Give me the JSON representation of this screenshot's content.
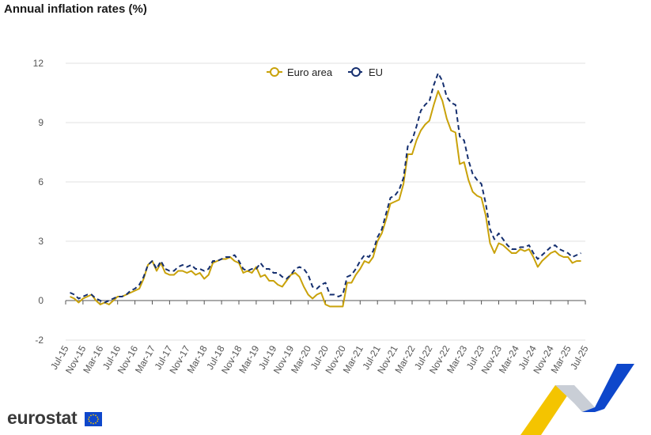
{
  "title": "Annual inflation rates (%)",
  "logo": "eurostat",
  "colors": {
    "euro_area": "#c9a20a",
    "eu": "#152f6f",
    "grid": "#e0e0e0",
    "axis": "#555555",
    "deco_yellow": "#f4c400",
    "deco_blue": "#0e47cb",
    "deco_grey": "#b9bec7"
  },
  "chart_data": {
    "type": "line",
    "title": "Annual inflation rates (%)",
    "xlabel": "",
    "ylabel": "",
    "ylim": [
      -2,
      12
    ],
    "yticks": [
      -2,
      0,
      3,
      6,
      9,
      12
    ],
    "grid": true,
    "legend_position": "top-center",
    "x_tick_labels": [
      "Jul-15",
      "Nov-15",
      "Mar-16",
      "Jul-16",
      "Nov-16",
      "Mar-17",
      "Jul-17",
      "Nov-17",
      "Mar-18",
      "Jul-18",
      "Nov-18",
      "Mar-19",
      "Jul-19",
      "Nov-19",
      "Mar-20",
      "Jul-20",
      "Nov-20",
      "Mar-21",
      "Jul-21",
      "Nov-21",
      "Mar-22",
      "Jul-22",
      "Nov-22",
      "Mar-23",
      "Jul-23",
      "Nov-23",
      "Mar-24",
      "Jul-24",
      "Nov-24",
      "Mar-25",
      "Jul-25"
    ],
    "x_start": "Jul-15",
    "x_end": "Jul-25",
    "series": [
      {
        "name": "Euro area",
        "style": "solid",
        "values": [
          0.2,
          0.1,
          -0.1,
          0.1,
          0.2,
          0.3,
          0.0,
          -0.2,
          -0.1,
          -0.2,
          0.0,
          0.2,
          0.2,
          0.3,
          0.4,
          0.5,
          0.6,
          1.1,
          1.8,
          2.0,
          1.5,
          1.9,
          1.4,
          1.3,
          1.3,
          1.5,
          1.5,
          1.4,
          1.5,
          1.3,
          1.4,
          1.1,
          1.3,
          1.9,
          2.0,
          2.1,
          2.1,
          2.2,
          2.0,
          1.9,
          1.4,
          1.5,
          1.4,
          1.7,
          1.2,
          1.3,
          1.0,
          1.0,
          0.8,
          0.7,
          1.0,
          1.3,
          1.4,
          1.2,
          0.7,
          0.3,
          0.1,
          0.3,
          0.4,
          -0.2,
          -0.3,
          -0.3,
          -0.3,
          -0.3,
          0.9,
          0.9,
          1.3,
          1.6,
          2.0,
          1.9,
          2.2,
          3.0,
          3.4,
          4.1,
          4.9,
          5.0,
          5.1,
          5.9,
          7.4,
          7.4,
          8.1,
          8.6,
          8.9,
          9.1,
          9.9,
          10.6,
          10.1,
          9.2,
          8.6,
          8.5,
          6.9,
          7.0,
          6.1,
          5.5,
          5.3,
          5.2,
          4.3,
          2.9,
          2.4,
          2.9,
          2.8,
          2.6,
          2.4,
          2.4,
          2.6,
          2.5,
          2.6,
          2.2,
          1.7,
          2.0,
          2.2,
          2.4,
          2.5,
          2.3,
          2.2,
          2.2,
          1.9,
          2.0,
          2.0
        ],
        "values_start": "Aug-15"
      },
      {
        "name": "EU",
        "style": "dashed",
        "values": [
          0.4,
          0.3,
          0.1,
          0.2,
          0.3,
          0.3,
          0.1,
          0.0,
          -0.1,
          0.0,
          0.1,
          0.2,
          0.2,
          0.3,
          0.5,
          0.6,
          0.8,
          1.2,
          1.8,
          2.0,
          1.6,
          2.0,
          1.6,
          1.5,
          1.5,
          1.7,
          1.8,
          1.7,
          1.8,
          1.6,
          1.6,
          1.5,
          1.6,
          2.0,
          2.0,
          2.1,
          2.2,
          2.2,
          2.3,
          2.0,
          1.6,
          1.5,
          1.6,
          1.6,
          1.9,
          1.6,
          1.6,
          1.4,
          1.4,
          1.2,
          1.1,
          1.3,
          1.6,
          1.7,
          1.6,
          1.3,
          0.7,
          0.6,
          0.8,
          0.9,
          0.3,
          0.3,
          0.2,
          0.3,
          1.2,
          1.3,
          1.6,
          2.0,
          2.3,
          2.2,
          2.5,
          3.2,
          3.6,
          4.4,
          5.2,
          5.3,
          5.6,
          6.2,
          7.8,
          8.1,
          8.8,
          9.6,
          9.9,
          10.1,
          10.9,
          11.5,
          11.1,
          10.3,
          10.0,
          9.9,
          8.3,
          8.1,
          7.1,
          6.4,
          6.1,
          5.9,
          4.9,
          3.6,
          3.1,
          3.4,
          3.1,
          2.8,
          2.6,
          2.6,
          2.7,
          2.7,
          2.8,
          2.4,
          2.1,
          2.3,
          2.5,
          2.7,
          2.8,
          2.6,
          2.5,
          2.4,
          2.2,
          2.3,
          2.4
        ],
        "values_start": "Aug-15"
      }
    ]
  }
}
